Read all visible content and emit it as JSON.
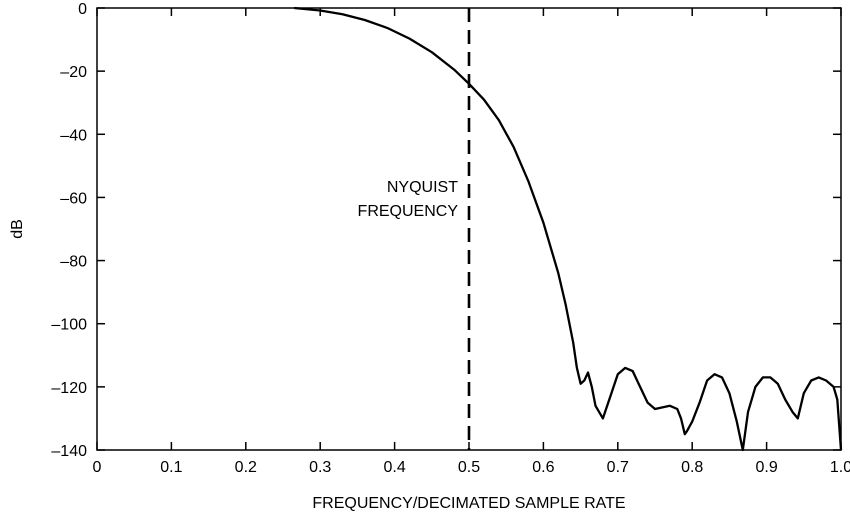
{
  "chart_data": {
    "type": "line",
    "title": "",
    "xlabel": "FREQUENCY/DECIMATED SAMPLE RATE",
    "ylabel": "dB",
    "xlim": [
      0,
      1.0
    ],
    "ylim": [
      -140,
      0
    ],
    "x_ticks": [
      0,
      0.1,
      0.2,
      0.3,
      0.4,
      0.5,
      0.6,
      0.7,
      0.8,
      0.9,
      1.0
    ],
    "x_tick_labels": [
      "0",
      "0.1",
      "0.2",
      "0.3",
      "0.4",
      "0.5",
      "0.6",
      "0.7",
      "0.8",
      "0.9",
      "1.0"
    ],
    "y_ticks": [
      0,
      -20,
      -40,
      -60,
      -80,
      -100,
      -120,
      -140
    ],
    "y_tick_labels": [
      "0",
      "–20",
      "–40",
      "–60",
      "–80",
      "–100",
      "–120",
      "–140"
    ],
    "grid": false,
    "series": [
      {
        "color": "#000000",
        "x": [
          0.265,
          0.3,
          0.33,
          0.36,
          0.39,
          0.42,
          0.45,
          0.48,
          0.5,
          0.52,
          0.54,
          0.56,
          0.58,
          0.6,
          0.62,
          0.63,
          0.64,
          0.645,
          0.65,
          0.655,
          0.66,
          0.665,
          0.67,
          0.68,
          0.69,
          0.7,
          0.71,
          0.72,
          0.73,
          0.74,
          0.75,
          0.76,
          0.77,
          0.78,
          0.785,
          0.79,
          0.793,
          0.8,
          0.81,
          0.82,
          0.83,
          0.84,
          0.85,
          0.86,
          0.868,
          0.875,
          0.885,
          0.895,
          0.905,
          0.915,
          0.925,
          0.935,
          0.942,
          0.95,
          0.96,
          0.97,
          0.98,
          0.99,
          0.995,
          1.0
        ],
        "y": [
          0,
          -0.8,
          -2,
          -3.8,
          -6.3,
          -9.7,
          -14,
          -19.5,
          -24,
          -29,
          -35.5,
          -44,
          -55,
          -68,
          -84,
          -94,
          -106,
          -114,
          -119,
          -118,
          -115.5,
          -120,
          -126,
          -130,
          -123,
          -116,
          -114,
          -115,
          -120,
          -125,
          -127,
          -126.5,
          -126,
          -127,
          -130,
          -135,
          -134,
          -131,
          -125,
          -118,
          -116,
          -117,
          -122,
          -131,
          -140,
          -128,
          -120,
          -117,
          -117,
          -119,
          -124,
          -128,
          -130,
          -122,
          -118,
          -117,
          -118,
          -120,
          -124,
          -140
        ]
      }
    ],
    "annotations": [
      {
        "type": "vline",
        "x": 0.5,
        "style": "dashed",
        "label_lines": [
          "NYQUIST",
          "FREQUENCY"
        ]
      }
    ]
  }
}
